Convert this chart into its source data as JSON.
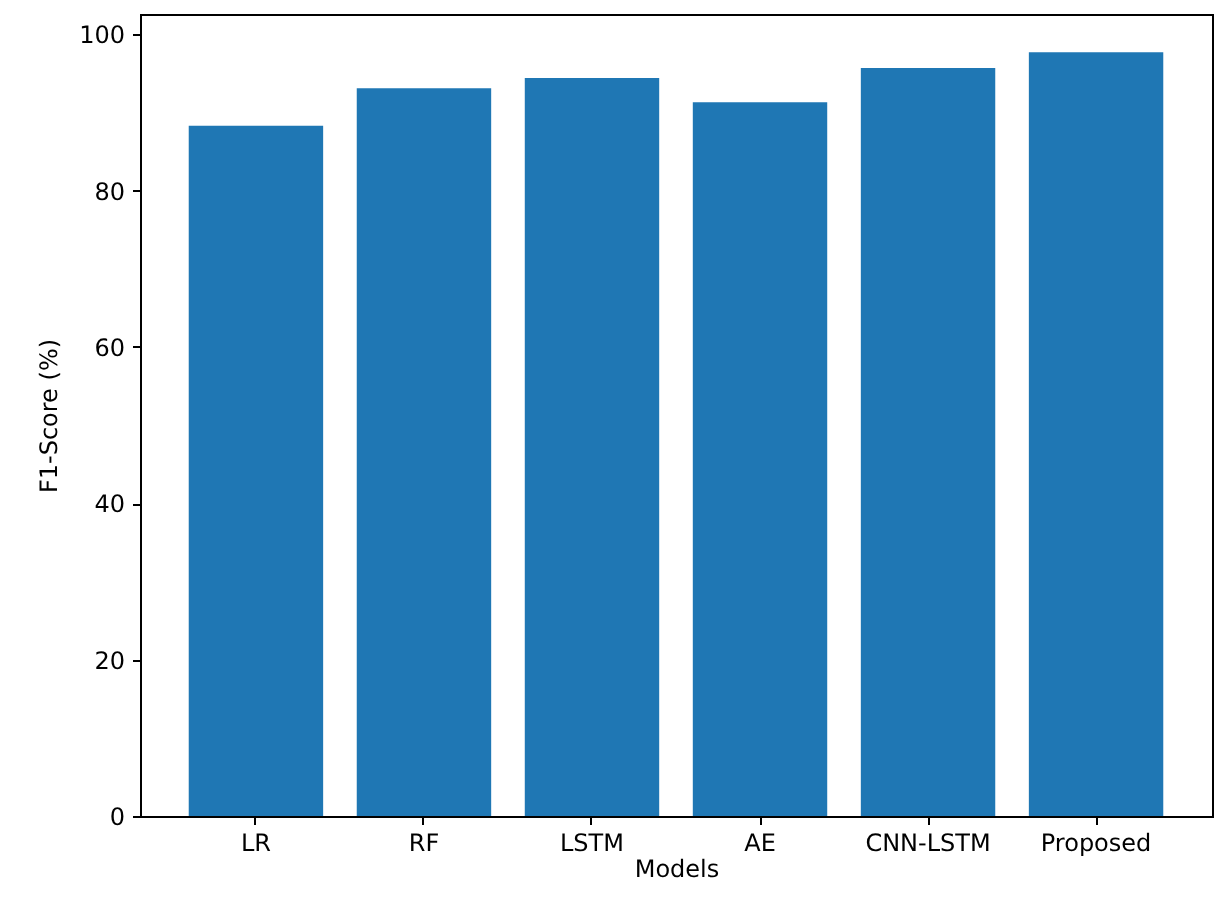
{
  "chart_data": {
    "type": "bar",
    "xlabel": "Models",
    "ylabel": "F1-Score (%)",
    "categories": [
      "LR",
      "RF",
      "LSTM",
      "AE",
      "CNN-LSTM",
      "Proposed"
    ],
    "values": [
      88.3,
      93.1,
      94.4,
      91.3,
      95.7,
      97.7
    ],
    "color": "#1f77b4",
    "ylim": [
      0,
      102.6
    ],
    "yticks": [
      0,
      20,
      40,
      60,
      80,
      100
    ],
    "grid": false
  }
}
